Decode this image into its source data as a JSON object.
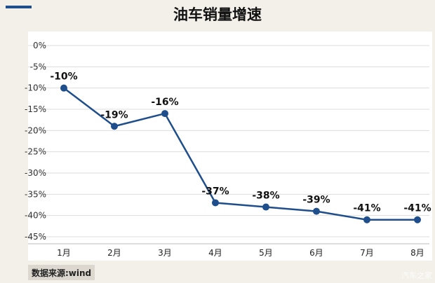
{
  "title": "油车销量增速",
  "source": "数据来源:wind",
  "watermark": "汽车之家",
  "colors": {
    "line": "#1f4e8c",
    "marker": "#1f4e8c",
    "grid": "#dddddd",
    "background": "#f3f0ea",
    "plot_background": "#ffffff"
  },
  "chart_data": {
    "type": "line",
    "title": "油车销量增速",
    "categories": [
      "1月",
      "2月",
      "3月",
      "4月",
      "5月",
      "6月",
      "7月",
      "8月"
    ],
    "values": [
      -10,
      -19,
      -16,
      -37,
      -38,
      -39,
      -41,
      -41
    ],
    "data_labels": [
      "-10%",
      "-19%",
      "-16%",
      "-37%",
      "-38%",
      "-39%",
      "-41%",
      "-41%"
    ],
    "y_ticks": [
      0,
      -5,
      -10,
      -15,
      -20,
      -25,
      -30,
      -35,
      -40,
      -45
    ],
    "y_tick_labels": [
      "0%",
      "-5%",
      "-10%",
      "-15%",
      "-20%",
      "-25%",
      "-30%",
      "-35%",
      "-40%",
      "-45%"
    ],
    "ylim": [
      -45,
      0
    ],
    "grid": true,
    "legend": "none",
    "xlabel": "",
    "ylabel": ""
  }
}
